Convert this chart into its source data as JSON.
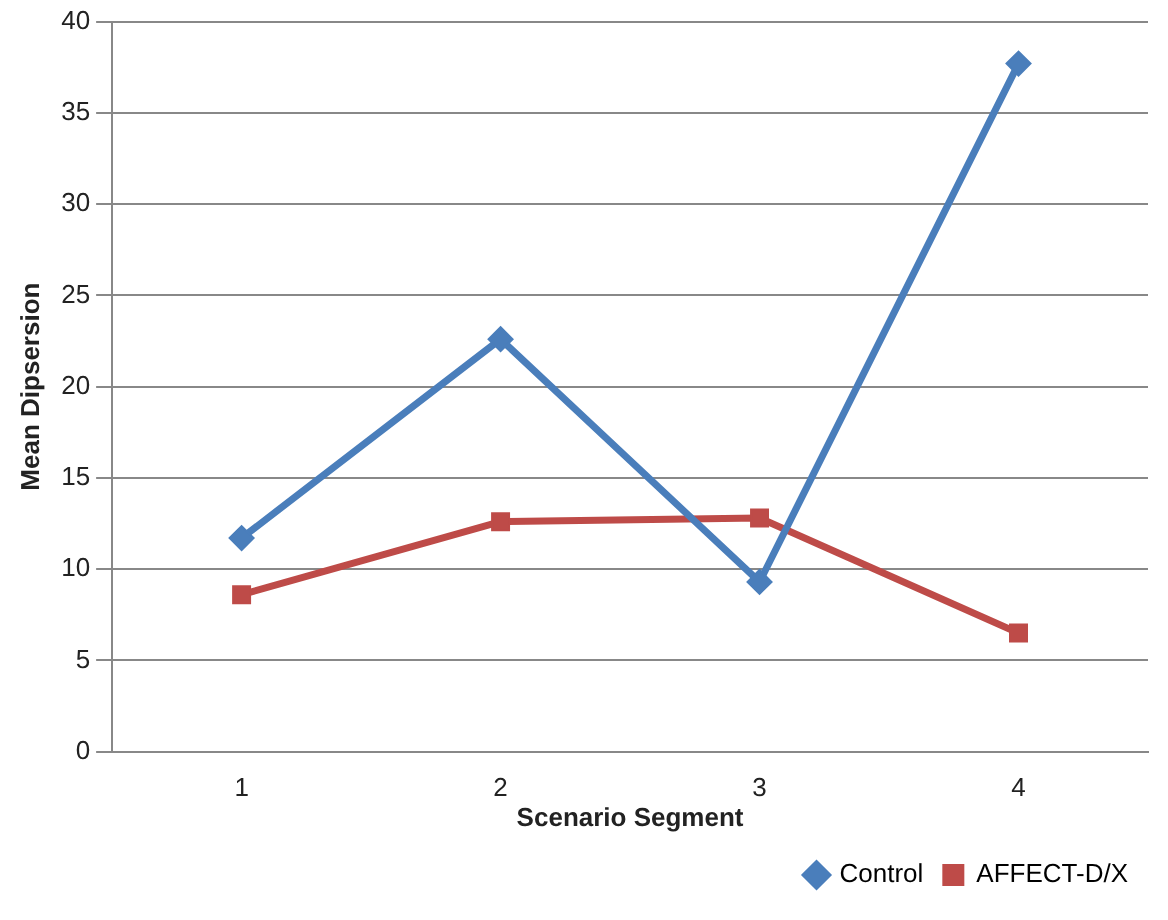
{
  "chart_data": {
    "type": "line",
    "xlabel": "Scenario Segment",
    "ylabel": "Mean Dipsersion",
    "categories": [
      "1",
      "2",
      "3",
      "4"
    ],
    "series": [
      {
        "name": "Control",
        "color": "#4a7ebb",
        "marker": "diamond",
        "values": [
          11.7,
          22.6,
          9.3,
          37.7
        ]
      },
      {
        "name": "AFFECT-D/X",
        "color": "#be4b48",
        "marker": "square",
        "values": [
          8.6,
          12.6,
          12.8,
          6.5
        ]
      }
    ],
    "ylim": [
      0,
      40
    ],
    "yticks": [
      0,
      5,
      10,
      15,
      20,
      25,
      30,
      35,
      40
    ],
    "grid": "y",
    "legend": "bottom right",
    "line_style": "solid"
  }
}
